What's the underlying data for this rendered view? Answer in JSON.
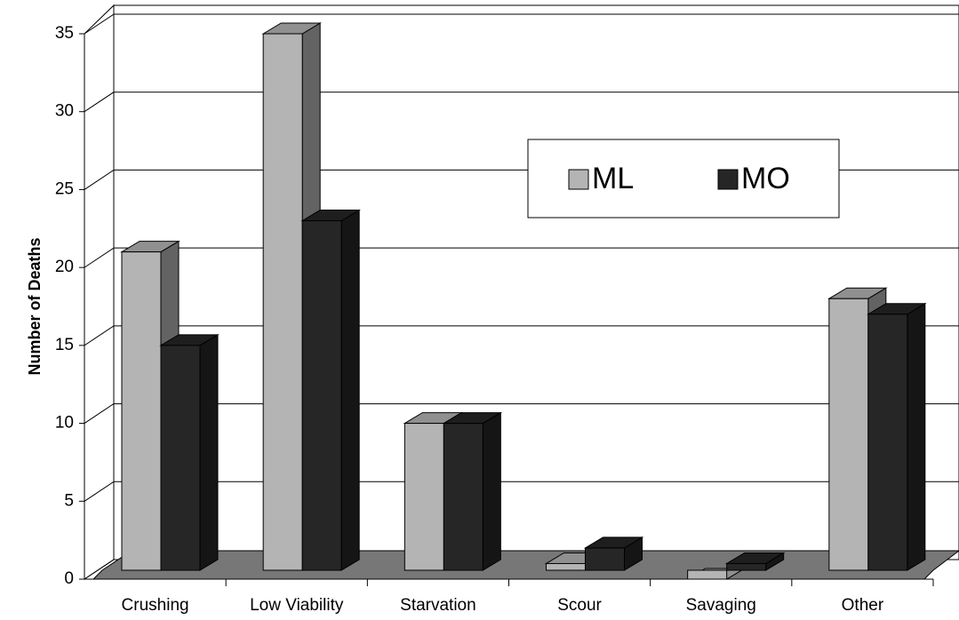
{
  "chart_data": {
    "type": "bar3d",
    "y_label": "Number of Deaths",
    "categories": [
      "Crushing",
      "Low Viability",
      "Starvation",
      "Scour",
      "Savaging",
      "Other"
    ],
    "series": [
      {
        "name": "ML",
        "color": "#b4b4b4",
        "values": [
          21,
          35,
          10,
          1,
          0,
          18
        ]
      },
      {
        "name": "MO",
        "color": "#262626",
        "values": [
          15,
          23,
          10,
          2,
          1,
          17
        ]
      }
    ],
    "ylim": [
      0,
      35
    ],
    "yticks": [
      0,
      5,
      10,
      15,
      20,
      25,
      30,
      35
    ],
    "grid": true
  }
}
